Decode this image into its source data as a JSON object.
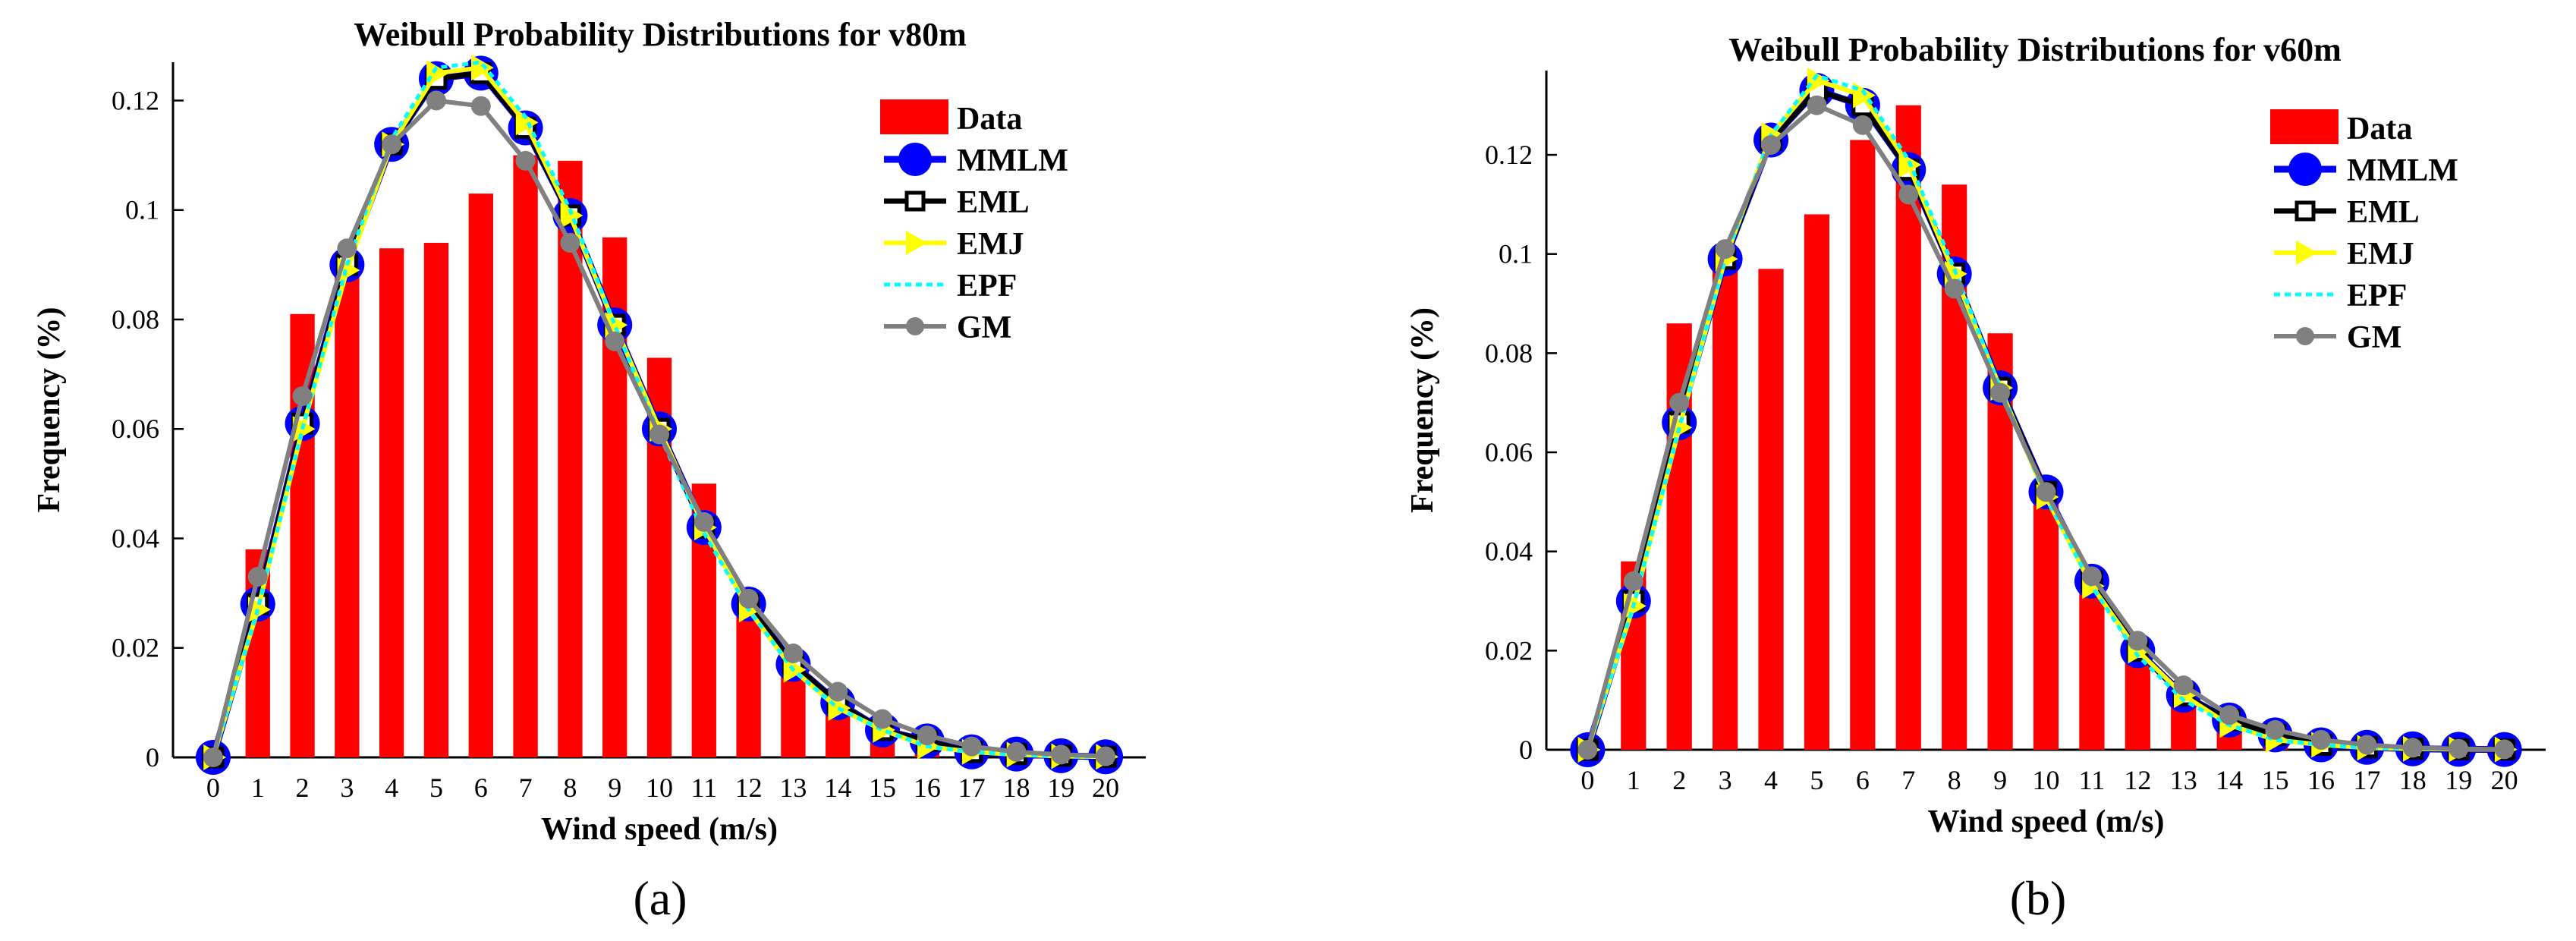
{
  "colors": {
    "data": "#ff0000",
    "mmlm": "#0000ff",
    "eml": "#000000",
    "emj": "#ffff00",
    "epf": "#00ffff",
    "gm": "#808080"
  },
  "chart_data": [
    {
      "type": "bar",
      "panel_label": "(a)",
      "title": "Weibull Probability Distributions for v80m",
      "xlabel": "Wind speed (m/s)",
      "ylabel": "Frequency (%)",
      "xlim": [
        -0.9,
        20.9
      ],
      "ylim": [
        0,
        0.127
      ],
      "x": [
        0,
        1,
        2,
        3,
        4,
        5,
        6,
        7,
        8,
        9,
        10,
        11,
        12,
        13,
        14,
        15,
        16,
        17,
        18,
        19,
        20
      ],
      "x_ticks": [
        "0",
        "1",
        "2",
        "3",
        "4",
        "5",
        "6",
        "7",
        "8",
        "9",
        "10",
        "11",
        "12",
        "13",
        "14",
        "15",
        "16",
        "17",
        "18",
        "19",
        "20"
      ],
      "y_ticks": [
        0,
        0.02,
        0.04,
        0.06,
        0.08,
        0.1,
        0.12
      ],
      "y_tick_labels": [
        "0",
        "0.02",
        "0.04",
        "0.06",
        "0.08",
        "0.1",
        "0.12"
      ],
      "legend": {
        "placement": "top-right",
        "labels": [
          "Data",
          "MMLM",
          "EML",
          "EMJ",
          "EPF",
          "GM"
        ]
      },
      "series": [
        {
          "name": "Data",
          "kind": "bar",
          "values": [
            0,
            0.038,
            0.081,
            0.09,
            0.093,
            0.094,
            0.103,
            0.11,
            0.109,
            0.095,
            0.073,
            0.05,
            0.027,
            0.017,
            0.008,
            0.003,
            0.002,
            0.001,
            0.0005,
            0.0003,
            0.0002
          ]
        },
        {
          "name": "MMLM",
          "kind": "line",
          "values": [
            0,
            0.028,
            0.061,
            0.09,
            0.112,
            0.124,
            0.125,
            0.115,
            0.099,
            0.079,
            0.06,
            0.042,
            0.028,
            0.017,
            0.01,
            0.005,
            0.003,
            0.001,
            0.0006,
            0.0003,
            0.0001
          ]
        },
        {
          "name": "EML",
          "kind": "line",
          "values": [
            0,
            0.028,
            0.061,
            0.09,
            0.112,
            0.124,
            0.125,
            0.115,
            0.099,
            0.079,
            0.06,
            0.042,
            0.028,
            0.017,
            0.01,
            0.005,
            0.003,
            0.001,
            0.0006,
            0.0003,
            0.0001
          ]
        },
        {
          "name": "EMJ",
          "kind": "line",
          "values": [
            0,
            0.027,
            0.06,
            0.089,
            0.112,
            0.125,
            0.126,
            0.116,
            0.099,
            0.079,
            0.06,
            0.042,
            0.027,
            0.016,
            0.009,
            0.005,
            0.002,
            0.001,
            0.0005,
            0.0002,
            0.0001
          ]
        },
        {
          "name": "EPF",
          "kind": "line",
          "values": [
            0,
            0.027,
            0.06,
            0.09,
            0.113,
            0.126,
            0.127,
            0.117,
            0.1,
            0.079,
            0.059,
            0.041,
            0.027,
            0.016,
            0.009,
            0.005,
            0.002,
            0.001,
            0.0005,
            0.0002,
            0.0001
          ]
        },
        {
          "name": "GM",
          "kind": "line",
          "values": [
            0,
            0.033,
            0.066,
            0.093,
            0.112,
            0.12,
            0.119,
            0.109,
            0.094,
            0.076,
            0.059,
            0.043,
            0.029,
            0.019,
            0.012,
            0.007,
            0.004,
            0.002,
            0.001,
            0.0005,
            0.0002
          ]
        }
      ]
    },
    {
      "type": "bar",
      "panel_label": "(b)",
      "title": "Weibull Probability Distributions for v60m",
      "xlabel": "Wind speed (m/s)",
      "ylabel": "Frequency (%)",
      "xlim": [
        -0.9,
        20.9
      ],
      "ylim": [
        0,
        0.137
      ],
      "x": [
        0,
        1,
        2,
        3,
        4,
        5,
        6,
        7,
        8,
        9,
        10,
        11,
        12,
        13,
        14,
        15,
        16,
        17,
        18,
        19,
        20
      ],
      "x_ticks": [
        "0",
        "1",
        "2",
        "3",
        "4",
        "5",
        "6",
        "7",
        "8",
        "9",
        "10",
        "11",
        "12",
        "13",
        "14",
        "15",
        "16",
        "17",
        "18",
        "19",
        "20"
      ],
      "y_ticks": [
        0,
        0.02,
        0.04,
        0.06,
        0.08,
        0.1,
        0.12
      ],
      "y_tick_labels": [
        "0",
        "0.02",
        "0.04",
        "0.06",
        "0.08",
        "0.1",
        "0.12"
      ],
      "legend": {
        "placement": "top-right",
        "labels": [
          "Data",
          "MMLM",
          "EML",
          "EMJ",
          "EPF",
          "GM"
        ]
      },
      "series": [
        {
          "name": "Data",
          "kind": "bar",
          "values": [
            0,
            0.038,
            0.086,
            0.097,
            0.097,
            0.108,
            0.123,
            0.13,
            0.114,
            0.084,
            0.05,
            0.033,
            0.018,
            0.009,
            0.004,
            0.002,
            0.001,
            0.0005,
            0.0003,
            0.0002,
            0.0001
          ]
        },
        {
          "name": "MMLM",
          "kind": "line",
          "values": [
            0,
            0.03,
            0.066,
            0.099,
            0.123,
            0.133,
            0.13,
            0.117,
            0.096,
            0.073,
            0.052,
            0.034,
            0.02,
            0.011,
            0.006,
            0.003,
            0.001,
            0.0005,
            0.0002,
            0.0001,
            5e-05
          ]
        },
        {
          "name": "EML",
          "kind": "line",
          "values": [
            0,
            0.03,
            0.066,
            0.099,
            0.123,
            0.133,
            0.13,
            0.117,
            0.096,
            0.073,
            0.052,
            0.034,
            0.02,
            0.011,
            0.006,
            0.003,
            0.001,
            0.0005,
            0.0002,
            0.0001,
            5e-05
          ]
        },
        {
          "name": "EMJ",
          "kind": "line",
          "values": [
            0,
            0.029,
            0.065,
            0.099,
            0.124,
            0.135,
            0.132,
            0.118,
            0.096,
            0.073,
            0.051,
            0.033,
            0.02,
            0.011,
            0.005,
            0.002,
            0.001,
            0.0004,
            0.0002,
            0.0001,
            5e-05
          ]
        },
        {
          "name": "EPF",
          "kind": "line",
          "values": [
            0,
            0.029,
            0.065,
            0.099,
            0.124,
            0.136,
            0.133,
            0.119,
            0.097,
            0.073,
            0.051,
            0.033,
            0.019,
            0.01,
            0.005,
            0.002,
            0.001,
            0.0004,
            0.0002,
            0.0001,
            5e-05
          ]
        },
        {
          "name": "GM",
          "kind": "line",
          "values": [
            0,
            0.034,
            0.07,
            0.101,
            0.122,
            0.13,
            0.126,
            0.112,
            0.093,
            0.072,
            0.052,
            0.035,
            0.022,
            0.013,
            0.007,
            0.004,
            0.002,
            0.001,
            0.0004,
            0.0002,
            0.0001
          ]
        }
      ]
    }
  ]
}
